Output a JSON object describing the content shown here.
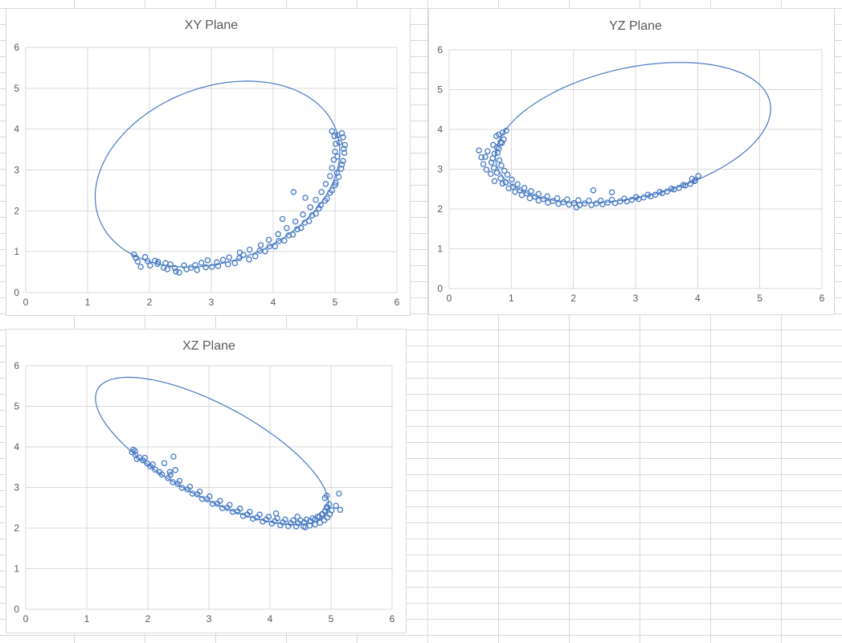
{
  "colors": {
    "accent_blue": "#4779c4",
    "axis_text": "#595959",
    "chart_gridline": "#d9d9d9",
    "sheet_gridline": "#d9d9d9",
    "chart_border": "#d9d9d9",
    "chart_background": "#ffffff"
  },
  "chart_data": [
    {
      "type": "scatter",
      "title": "XY Plane",
      "xlabel": "",
      "ylabel": "",
      "xlim": [
        0,
        6
      ],
      "ylim": [
        0,
        6
      ],
      "x_ticks": [
        0,
        1,
        2,
        3,
        4,
        5,
        6
      ],
      "y_ticks": [
        0,
        1,
        2,
        3,
        4,
        5,
        6
      ],
      "grid": true,
      "legend": "none",
      "fit_ellipse": {
        "cx": 3.1,
        "cy": 2.9,
        "a": 2.41,
        "b": 1.81,
        "theta_deg": 60
      },
      "points": [
        [
          1.78,
          0.85
        ],
        [
          1.81,
          0.76
        ],
        [
          1.75,
          0.93
        ],
        [
          1.86,
          0.63
        ],
        [
          1.93,
          0.87
        ],
        [
          1.97,
          0.77
        ],
        [
          2.01,
          0.66
        ],
        [
          2.09,
          0.78
        ],
        [
          2.13,
          0.7
        ],
        [
          2.14,
          0.75
        ],
        [
          2.23,
          0.61
        ],
        [
          2.26,
          0.72
        ],
        [
          2.29,
          0.57
        ],
        [
          2.34,
          0.69
        ],
        [
          2.41,
          0.6
        ],
        [
          2.43,
          0.52
        ],
        [
          2.48,
          0.49
        ],
        [
          2.56,
          0.66
        ],
        [
          2.6,
          0.57
        ],
        [
          2.67,
          0.61
        ],
        [
          2.74,
          0.67
        ],
        [
          2.77,
          0.55
        ],
        [
          2.84,
          0.73
        ],
        [
          2.91,
          0.62
        ],
        [
          2.94,
          0.79
        ],
        [
          3.01,
          0.63
        ],
        [
          3.09,
          0.74
        ],
        [
          3.11,
          0.65
        ],
        [
          3.19,
          0.8
        ],
        [
          3.27,
          0.69
        ],
        [
          3.29,
          0.86
        ],
        [
          3.38,
          0.72
        ],
        [
          3.45,
          0.84
        ],
        [
          3.46,
          0.98
        ],
        [
          3.52,
          0.92
        ],
        [
          3.61,
          0.81
        ],
        [
          3.62,
          1.05
        ],
        [
          3.71,
          0.89
        ],
        [
          3.78,
          1.02
        ],
        [
          3.8,
          1.16
        ],
        [
          3.87,
          1.01
        ],
        [
          3.94,
          1.13
        ],
        [
          3.93,
          1.29
        ],
        [
          4.03,
          1.13
        ],
        [
          4.09,
          1.26
        ],
        [
          4.08,
          1.43
        ],
        [
          4.18,
          1.27
        ],
        [
          4.25,
          1.4
        ],
        [
          4.22,
          1.58
        ],
        [
          4.32,
          1.42
        ],
        [
          4.39,
          1.55
        ],
        [
          4.36,
          1.74
        ],
        [
          4.45,
          1.58
        ],
        [
          4.51,
          1.71
        ],
        [
          4.48,
          1.91
        ],
        [
          4.58,
          1.75
        ],
        [
          4.63,
          1.89
        ],
        [
          4.6,
          2.09
        ],
        [
          4.69,
          1.93
        ],
        [
          4.74,
          2.06
        ],
        [
          4.69,
          2.27
        ],
        [
          4.77,
          2.14
        ],
        [
          4.84,
          2.25
        ],
        [
          4.78,
          2.46
        ],
        [
          4.87,
          2.3
        ],
        [
          4.92,
          2.44
        ],
        [
          4.85,
          2.66
        ],
        [
          4.95,
          2.5
        ],
        [
          5.0,
          2.63
        ],
        [
          4.92,
          2.85
        ],
        [
          5.01,
          2.69
        ],
        [
          5.06,
          2.83
        ],
        [
          4.95,
          3.05
        ],
        [
          5.03,
          2.93
        ],
        [
          5.1,
          3.03
        ],
        [
          4.98,
          3.25
        ],
        [
          5.11,
          3.13
        ],
        [
          5.13,
          3.22
        ],
        [
          5.0,
          3.45
        ],
        [
          5.04,
          3.33
        ],
        [
          5.15,
          3.42
        ],
        [
          5.01,
          3.64
        ],
        [
          5.14,
          3.52
        ],
        [
          5.16,
          3.61
        ],
        [
          4.99,
          3.83
        ],
        [
          5.07,
          3.67
        ],
        [
          5.13,
          3.8
        ],
        [
          4.95,
          3.95
        ],
        [
          5.04,
          3.85
        ],
        [
          5.11,
          3.9
        ],
        [
          4.33,
          2.46
        ],
        [
          4.52,
          2.32
        ],
        [
          4.15,
          1.8
        ]
      ]
    },
    {
      "type": "scatter",
      "title": "YZ Plane",
      "xlabel": "",
      "ylabel": "",
      "xlim": [
        0,
        6
      ],
      "ylim": [
        0,
        6
      ],
      "x_ticks": [
        0,
        1,
        2,
        3,
        4,
        5,
        6
      ],
      "y_ticks": [
        0,
        1,
        2,
        3,
        4,
        5,
        6
      ],
      "grid": true,
      "legend": "none",
      "fit_ellipse": {
        "cx": 2.96,
        "cy": 3.92,
        "a": 2.37,
        "b": 1.55,
        "theta_deg": 28
      },
      "points": [
        [
          0.86,
          3.92
        ],
        [
          0.92,
          3.97
        ],
        [
          0.8,
          3.87
        ],
        [
          0.76,
          3.83
        ],
        [
          0.88,
          3.75
        ],
        [
          0.83,
          3.68
        ],
        [
          0.71,
          3.61
        ],
        [
          0.85,
          3.66
        ],
        [
          0.77,
          3.55
        ],
        [
          0.62,
          3.45
        ],
        [
          0.8,
          3.52
        ],
        [
          0.73,
          3.39
        ],
        [
          0.58,
          3.31
        ],
        [
          0.78,
          3.41
        ],
        [
          0.7,
          3.27
        ],
        [
          0.55,
          3.13
        ],
        [
          0.81,
          3.23
        ],
        [
          0.68,
          3.17
        ],
        [
          0.6,
          2.99
        ],
        [
          0.84,
          3.09
        ],
        [
          0.72,
          3.03
        ],
        [
          0.67,
          2.88
        ],
        [
          0.89,
          2.96
        ],
        [
          0.77,
          2.91
        ],
        [
          0.73,
          2.7
        ],
        [
          0.94,
          2.86
        ],
        [
          0.83,
          2.77
        ],
        [
          0.86,
          2.64
        ],
        [
          1.01,
          2.74
        ],
        [
          0.91,
          2.67
        ],
        [
          0.96,
          2.52
        ],
        [
          1.1,
          2.62
        ],
        [
          1.03,
          2.56
        ],
        [
          1.06,
          2.43
        ],
        [
          1.21,
          2.53
        ],
        [
          1.14,
          2.47
        ],
        [
          1.17,
          2.35
        ],
        [
          1.32,
          2.45
        ],
        [
          1.25,
          2.39
        ],
        [
          1.3,
          2.27
        ],
        [
          1.44,
          2.38
        ],
        [
          1.38,
          2.31
        ],
        [
          1.44,
          2.21
        ],
        [
          1.58,
          2.32
        ],
        [
          1.52,
          2.25
        ],
        [
          1.59,
          2.16
        ],
        [
          1.74,
          2.27
        ],
        [
          1.67,
          2.2
        ],
        [
          1.76,
          2.13
        ],
        [
          1.9,
          2.24
        ],
        [
          1.84,
          2.17
        ],
        [
          1.93,
          2.11
        ],
        [
          2.08,
          2.22
        ],
        [
          2.01,
          2.15
        ],
        [
          2.1,
          2.1
        ],
        [
          2.25,
          2.21
        ],
        [
          2.18,
          2.14
        ],
        [
          2.29,
          2.1
        ],
        [
          2.44,
          2.21
        ],
        [
          2.37,
          2.14
        ],
        [
          2.47,
          2.12
        ],
        [
          2.62,
          2.23
        ],
        [
          2.55,
          2.16
        ],
        [
          2.67,
          2.15
        ],
        [
          2.82,
          2.26
        ],
        [
          2.75,
          2.19
        ],
        [
          2.86,
          2.19
        ],
        [
          3.01,
          2.3
        ],
        [
          2.94,
          2.23
        ],
        [
          3.05,
          2.25
        ],
        [
          3.2,
          2.36
        ],
        [
          3.13,
          2.29
        ],
        [
          3.24,
          2.32
        ],
        [
          3.39,
          2.43
        ],
        [
          3.32,
          2.36
        ],
        [
          3.43,
          2.4
        ],
        [
          3.58,
          2.51
        ],
        [
          3.51,
          2.44
        ],
        [
          3.62,
          2.49
        ],
        [
          3.77,
          2.6
        ],
        [
          3.7,
          2.53
        ],
        [
          3.8,
          2.59
        ],
        [
          3.95,
          2.7
        ],
        [
          3.88,
          2.63
        ],
        [
          3.96,
          2.72
        ],
        [
          4.01,
          2.83
        ],
        [
          3.91,
          2.76
        ],
        [
          0.48,
          3.47
        ],
        [
          0.52,
          3.3
        ],
        [
          2.05,
          2.04
        ],
        [
          2.32,
          2.47
        ],
        [
          2.62,
          2.42
        ]
      ]
    },
    {
      "type": "scatter",
      "title": "XZ Plane",
      "xlabel": "",
      "ylabel": "",
      "xlim": [
        0,
        6
      ],
      "ylim": [
        0,
        6
      ],
      "x_ticks": [
        0,
        1,
        2,
        3,
        4,
        5,
        6
      ],
      "y_ticks": [
        0,
        1,
        2,
        3,
        4,
        5,
        6
      ],
      "grid": true,
      "legend": "none",
      "fit_ellipse": {
        "cx": 3.05,
        "cy": 3.9,
        "a": 2.44,
        "b": 0.99,
        "theta_deg": -43
      },
      "points": [
        [
          1.76,
          3.93
        ],
        [
          1.79,
          3.9
        ],
        [
          1.74,
          3.87
        ],
        [
          1.8,
          3.8
        ],
        [
          1.86,
          3.74
        ],
        [
          1.82,
          3.7
        ],
        [
          1.92,
          3.67
        ],
        [
          1.99,
          3.59
        ],
        [
          1.95,
          3.73
        ],
        [
          2.04,
          3.52
        ],
        [
          2.12,
          3.44
        ],
        [
          2.08,
          3.57
        ],
        [
          2.19,
          3.38
        ],
        [
          2.27,
          3.6
        ],
        [
          2.23,
          3.32
        ],
        [
          2.33,
          3.23
        ],
        [
          2.41,
          3.13
        ],
        [
          2.37,
          3.31
        ],
        [
          2.42,
          3.76
        ],
        [
          2.45,
          3.43
        ],
        [
          2.36,
          3.38
        ],
        [
          2.49,
          3.09
        ],
        [
          2.56,
          2.99
        ],
        [
          2.52,
          3.16
        ],
        [
          2.65,
          2.95
        ],
        [
          2.73,
          2.85
        ],
        [
          2.69,
          3.02
        ],
        [
          2.81,
          2.83
        ],
        [
          2.89,
          2.72
        ],
        [
          2.85,
          2.9
        ],
        [
          2.97,
          2.71
        ],
        [
          3.06,
          2.6
        ],
        [
          3.01,
          2.78
        ],
        [
          3.14,
          2.6
        ],
        [
          3.22,
          2.49
        ],
        [
          3.18,
          2.67
        ],
        [
          3.3,
          2.5
        ],
        [
          3.39,
          2.4
        ],
        [
          3.34,
          2.57
        ],
        [
          3.47,
          2.41
        ],
        [
          3.56,
          2.3
        ],
        [
          3.51,
          2.48
        ],
        [
          3.63,
          2.33
        ],
        [
          3.72,
          2.23
        ],
        [
          3.67,
          2.4
        ],
        [
          3.79,
          2.26
        ],
        [
          3.88,
          2.16
        ],
        [
          3.83,
          2.33
        ],
        [
          3.94,
          2.21
        ],
        [
          4.03,
          2.11
        ],
        [
          3.98,
          2.28
        ],
        [
          4.08,
          2.17
        ],
        [
          4.17,
          2.07
        ],
        [
          4.12,
          2.24
        ],
        [
          4.21,
          2.14
        ],
        [
          4.3,
          2.05
        ],
        [
          4.25,
          2.21
        ],
        [
          4.34,
          2.12
        ],
        [
          4.43,
          2.04
        ],
        [
          4.38,
          2.19
        ],
        [
          4.46,
          2.12
        ],
        [
          4.55,
          2.04
        ],
        [
          4.5,
          2.19
        ],
        [
          4.56,
          2.14
        ],
        [
          4.65,
          2.06
        ],
        [
          4.6,
          2.21
        ],
        [
          4.66,
          2.17
        ],
        [
          4.74,
          2.09
        ],
        [
          4.7,
          2.24
        ],
        [
          4.74,
          2.21
        ],
        [
          4.82,
          2.13
        ],
        [
          4.78,
          2.28
        ],
        [
          4.81,
          2.27
        ],
        [
          4.89,
          2.19
        ],
        [
          4.85,
          2.34
        ],
        [
          4.86,
          2.34
        ],
        [
          4.94,
          2.26
        ],
        [
          4.9,
          2.41
        ],
        [
          4.9,
          2.42
        ],
        [
          4.98,
          2.34
        ],
        [
          4.94,
          2.49
        ],
        [
          4.93,
          2.52
        ],
        [
          5.01,
          2.44
        ],
        [
          4.97,
          2.59
        ],
        [
          4.93,
          2.8
        ],
        [
          4.9,
          2.74
        ],
        [
          5.13,
          2.85
        ],
        [
          5.15,
          2.45
        ],
        [
          5.08,
          2.55
        ],
        [
          4.58,
          2.02
        ],
        [
          4.45,
          2.28
        ],
        [
          4.1,
          2.36
        ]
      ]
    }
  ]
}
